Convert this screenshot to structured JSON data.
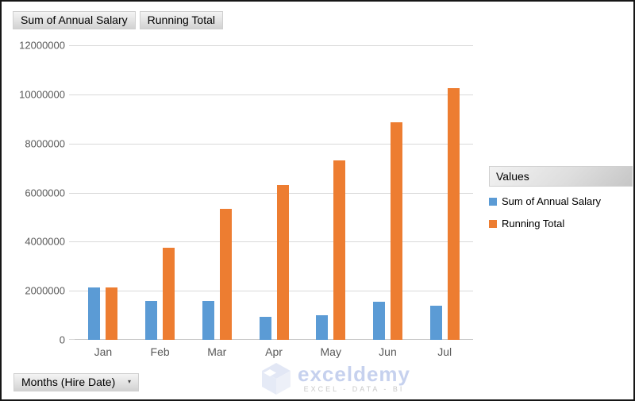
{
  "window": {
    "background": "#FFFFFF",
    "border_color": "#161616"
  },
  "pivot_buttons": {
    "value_fields": [
      {
        "label": "Sum of Annual Salary"
      },
      {
        "label": "Running Total"
      }
    ],
    "legend_field": {
      "label": "Values"
    },
    "axis_field": {
      "label": "Months (Hire Date)",
      "dropdown_icon": "▾"
    }
  },
  "chart_data": {
    "type": "bar",
    "categories": [
      "Jan",
      "Feb",
      "Mar",
      "Apr",
      "May",
      "Jun",
      "Jul"
    ],
    "series": [
      {
        "name": "Sum of Annual Salary",
        "color": "#5B9BD5",
        "values": [
          2150000,
          1600000,
          1600000,
          950000,
          1000000,
          1550000,
          1400000
        ]
      },
      {
        "name": "Running Total",
        "color": "#ED7D31",
        "values": [
          2150000,
          3750000,
          5350000,
          6300000,
          7300000,
          8850000,
          10250000
        ]
      }
    ],
    "title": "",
    "xlabel": "",
    "ylabel": "",
    "ylim": [
      0,
      12000000
    ],
    "ytick_interval": 2000000,
    "yticks": [
      "12000000",
      "10000000",
      "8000000",
      "6000000",
      "4000000",
      "2000000",
      "0"
    ],
    "grid": true,
    "gridline_color": "#D9D9D9",
    "axis_text_color": "#595959",
    "legend_position": "right"
  },
  "watermark": {
    "brand": "exceldemy",
    "tagline": "EXCEL - DATA - BI"
  }
}
